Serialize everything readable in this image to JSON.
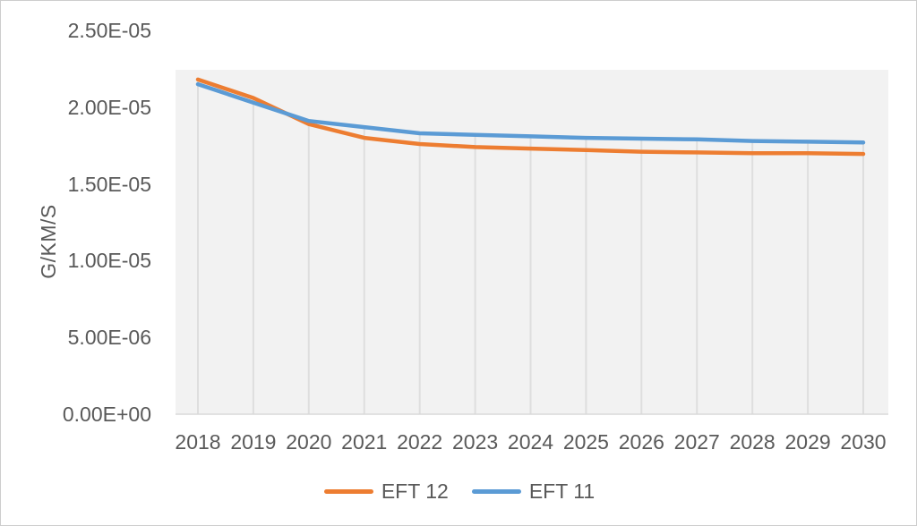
{
  "chart_data": {
    "type": "line",
    "title": "",
    "xlabel": "",
    "ylabel": "G/KM/S",
    "categories": [
      "2018",
      "2019",
      "2020",
      "2021",
      "2022",
      "2023",
      "2024",
      "2025",
      "2026",
      "2027",
      "2028",
      "2029",
      "2030"
    ],
    "series": [
      {
        "name": "EFT 12",
        "color": "#ED7D31",
        "values": [
          2.18e-05,
          2.06e-05,
          1.89e-05,
          1.8e-05,
          1.76e-05,
          1.74e-05,
          1.73e-05,
          1.72e-05,
          1.71e-05,
          1.705e-05,
          1.7e-05,
          1.7e-05,
          1.695e-05
        ]
      },
      {
        "name": "EFT 11",
        "color": "#5B9BD5",
        "values": [
          2.15e-05,
          2.03e-05,
          1.91e-05,
          1.87e-05,
          1.83e-05,
          1.82e-05,
          1.81e-05,
          1.8e-05,
          1.795e-05,
          1.79e-05,
          1.78e-05,
          1.775e-05,
          1.77e-05
        ]
      }
    ],
    "ylim": [
      0,
      2.5e-05
    ],
    "y_ticks": [
      {
        "value": 0,
        "label": "0.00E+00"
      },
      {
        "value": 5e-06,
        "label": "5.00E-06"
      },
      {
        "value": 1e-05,
        "label": "1.00E-05"
      },
      {
        "value": 1.5e-05,
        "label": "1.50E-05"
      },
      {
        "value": 2e-05,
        "label": "2.00E-05"
      },
      {
        "value": 2.5e-05,
        "label": "2.50E-05"
      }
    ],
    "grid": "vertical-drop-lines",
    "legend_position": "bottom",
    "colors": {
      "axis_text": "#595959",
      "drop_line": "#DEDEDE",
      "axis_line": "#D9D9D9",
      "plot_fill": "#F2F2F2",
      "chart_border": "#CDCDCD",
      "background": "#FFFFFF"
    }
  }
}
